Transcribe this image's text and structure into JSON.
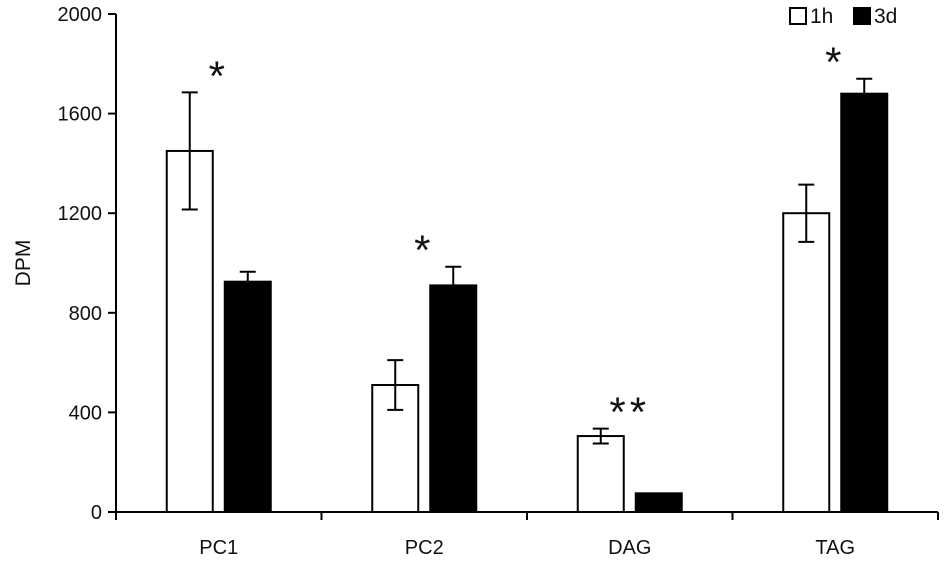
{
  "chart_data": {
    "type": "bar",
    "categories": [
      "PC1",
      "PC2",
      "DAG",
      "TAG"
    ],
    "series": [
      {
        "name": "1h",
        "values": [
          1450,
          510,
          305,
          1200
        ],
        "errors": [
          235,
          100,
          30,
          115
        ],
        "color": "#ffffff"
      },
      {
        "name": "3d",
        "values": [
          925,
          910,
          75,
          1680
        ],
        "errors": [
          40,
          75,
          0,
          60
        ],
        "color": "#000000"
      }
    ],
    "significance": [
      {
        "category": "PC1",
        "label": "*"
      },
      {
        "category": "PC2",
        "label": "*"
      },
      {
        "category": "DAG",
        "label": "**"
      },
      {
        "category": "TAG",
        "label": "*"
      }
    ],
    "title": "",
    "xlabel": "",
    "ylabel": "DPM",
    "ylim": [
      0,
      2000
    ],
    "yticks": [
      0,
      400,
      800,
      1200,
      1600,
      2000
    ],
    "grid": false,
    "legend_position": "top-right",
    "bar_edge_color": "#000000"
  }
}
